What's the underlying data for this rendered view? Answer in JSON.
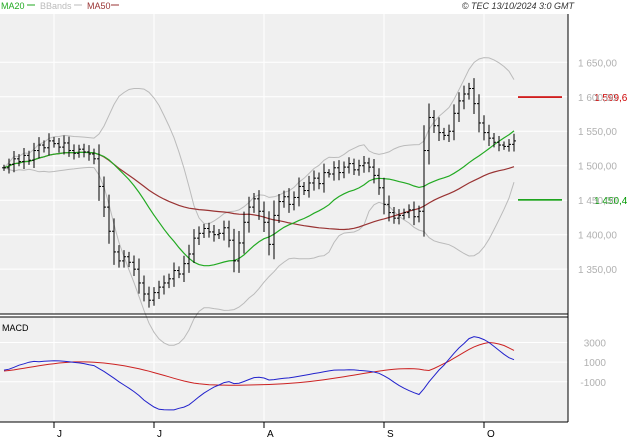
{
  "header": {
    "legend": [
      {
        "label": "MA20",
        "color": "#22aa22"
      },
      {
        "label": "BBands",
        "color": "#bbbbbb"
      },
      {
        "label": "MA50",
        "color": "#993333"
      }
    ],
    "copyright": "© TEC 13/10/2024 3:0 GMT"
  },
  "chart_data": [
    {
      "type": "ohlc",
      "title": "",
      "ylim": [
        1285,
        1720
      ],
      "y_ticks": [
        {
          "value": 1350,
          "label": "1 350,00"
        },
        {
          "value": 1400,
          "label": "1 400,00"
        },
        {
          "value": 1450,
          "label": "1 450,00"
        },
        {
          "value": 1500,
          "label": "1 500,00"
        },
        {
          "value": 1550,
          "label": "1 550,00"
        },
        {
          "value": 1600,
          "label": "1 600,00"
        },
        {
          "value": 1650,
          "label": "1 650,00"
        }
      ],
      "x_ticks": [
        {
          "index": 10,
          "label": "J"
        },
        {
          "index": 30,
          "label": "J"
        },
        {
          "index": 52,
          "label": "A"
        },
        {
          "index": 76,
          "label": "S"
        },
        {
          "index": 96,
          "label": "O"
        }
      ],
      "grid": true,
      "reference_lines": [
        {
          "value": 1599.6,
          "label": "1 599,6",
          "color": "#cc0000"
        },
        {
          "value": 1450.48,
          "label": "1 450,48",
          "color": "#009900"
        }
      ],
      "close": [
        1497,
        1502,
        1510,
        1506,
        1515,
        1508,
        1522,
        1530,
        1526,
        1536,
        1532,
        1527,
        1533,
        1522,
        1518,
        1524,
        1520,
        1517,
        1510,
        1470,
        1440,
        1405,
        1375,
        1362,
        1368,
        1360,
        1350,
        1330,
        1314,
        1305,
        1316,
        1324,
        1330,
        1336,
        1348,
        1343,
        1358,
        1372,
        1395,
        1402,
        1409,
        1404,
        1400,
        1402,
        1410,
        1392,
        1362,
        1388,
        1418,
        1440,
        1452,
        1434,
        1418,
        1386,
        1428,
        1448,
        1455,
        1444,
        1454,
        1470,
        1464,
        1475,
        1482,
        1474,
        1490,
        1488,
        1497,
        1490,
        1498,
        1503,
        1494,
        1500,
        1504,
        1498,
        1486,
        1468,
        1444,
        1432,
        1424,
        1428,
        1432,
        1436,
        1426,
        1434,
        1522,
        1570,
        1558,
        1548,
        1544,
        1550,
        1576,
        1594,
        1604,
        1612,
        1590,
        1562,
        1548,
        1540,
        1534,
        1530,
        1528,
        1531,
        1536
      ],
      "series": [
        {
          "name": "MA20",
          "color": "#22aa22"
        },
        {
          "name": "MA50",
          "color": "#993333"
        },
        {
          "name": "BBands",
          "color": "#bbbbbb"
        }
      ]
    },
    {
      "type": "line",
      "title": "MACD",
      "ylim": [
        -5100,
        5600
      ],
      "y_ticks": [
        {
          "value": 3000,
          "label": "3000"
        },
        {
          "value": 1000,
          "label": "1000"
        },
        {
          "value": -1000,
          "label": "-1000"
        }
      ],
      "macd": [
        186,
        284,
        472,
        684,
        828,
        990,
        1075,
        1049,
        1091,
        1118,
        1140,
        1129,
        1095,
        1047,
        976,
        924,
        849,
        743,
        644,
        342,
        60,
        -290,
        -633,
        -1008,
        -1331,
        -1654,
        -2000,
        -2395,
        -2866,
        -3237,
        -3567,
        -3801,
        -3853,
        -3866,
        -3869,
        -3701,
        -3577,
        -3344,
        -2950,
        -2530,
        -2150,
        -1841,
        -1540,
        -1328,
        -1087,
        -981,
        -1184,
        -1149,
        -974,
        -771,
        -573,
        -539,
        -617,
        -818,
        -775,
        -713,
        -636,
        -609,
        -522,
        -435,
        -350,
        -256,
        -159,
        -76,
        19,
        106,
        184,
        201,
        200,
        216,
        209,
        155,
        130,
        74,
        -1,
        -134,
        -387,
        -689,
        -1046,
        -1372,
        -1654,
        -1898,
        -2116,
        -2295,
        -1710,
        -1000,
        -400,
        200,
        700,
        1300,
        1900,
        2450,
        2900,
        3400,
        3600,
        3500,
        3300,
        3000,
        2600,
        2200,
        1800,
        1450,
        1250
      ],
      "signal": [
        100,
        148,
        213,
        298,
        386,
        469,
        549,
        627,
        704,
        778,
        846,
        908,
        958,
        996,
        1020,
        1029,
        1026,
        1012,
        988,
        957,
        911,
        852,
        785,
        710,
        627,
        535,
        434,
        323,
        201,
        72,
        -64,
        -205,
        -350,
        -498,
        -644,
        -786,
        -918,
        -1035,
        -1131,
        -1205,
        -1259,
        -1298,
        -1324,
        -1338,
        -1344,
        -1349,
        -1353,
        -1350,
        -1342,
        -1332,
        -1320,
        -1307,
        -1292,
        -1275,
        -1254,
        -1229,
        -1200,
        -1166,
        -1127,
        -1083,
        -1034,
        -980,
        -921,
        -858,
        -790,
        -719,
        -644,
        -566,
        -486,
        -403,
        -320,
        -236,
        -152,
        -70,
        10,
        86,
        156,
        219,
        271,
        310,
        333,
        339,
        326,
        294,
        200,
        150,
        350,
        600,
        850,
        1100,
        1400,
        1700,
        2000,
        2300,
        2550,
        2750,
        2900,
        3000,
        2950,
        2850,
        2700,
        2450,
        2200
      ],
      "series": [
        {
          "name": "MACD",
          "color": "#2222cc"
        },
        {
          "name": "Signal",
          "color": "#cc2222"
        }
      ]
    }
  ]
}
